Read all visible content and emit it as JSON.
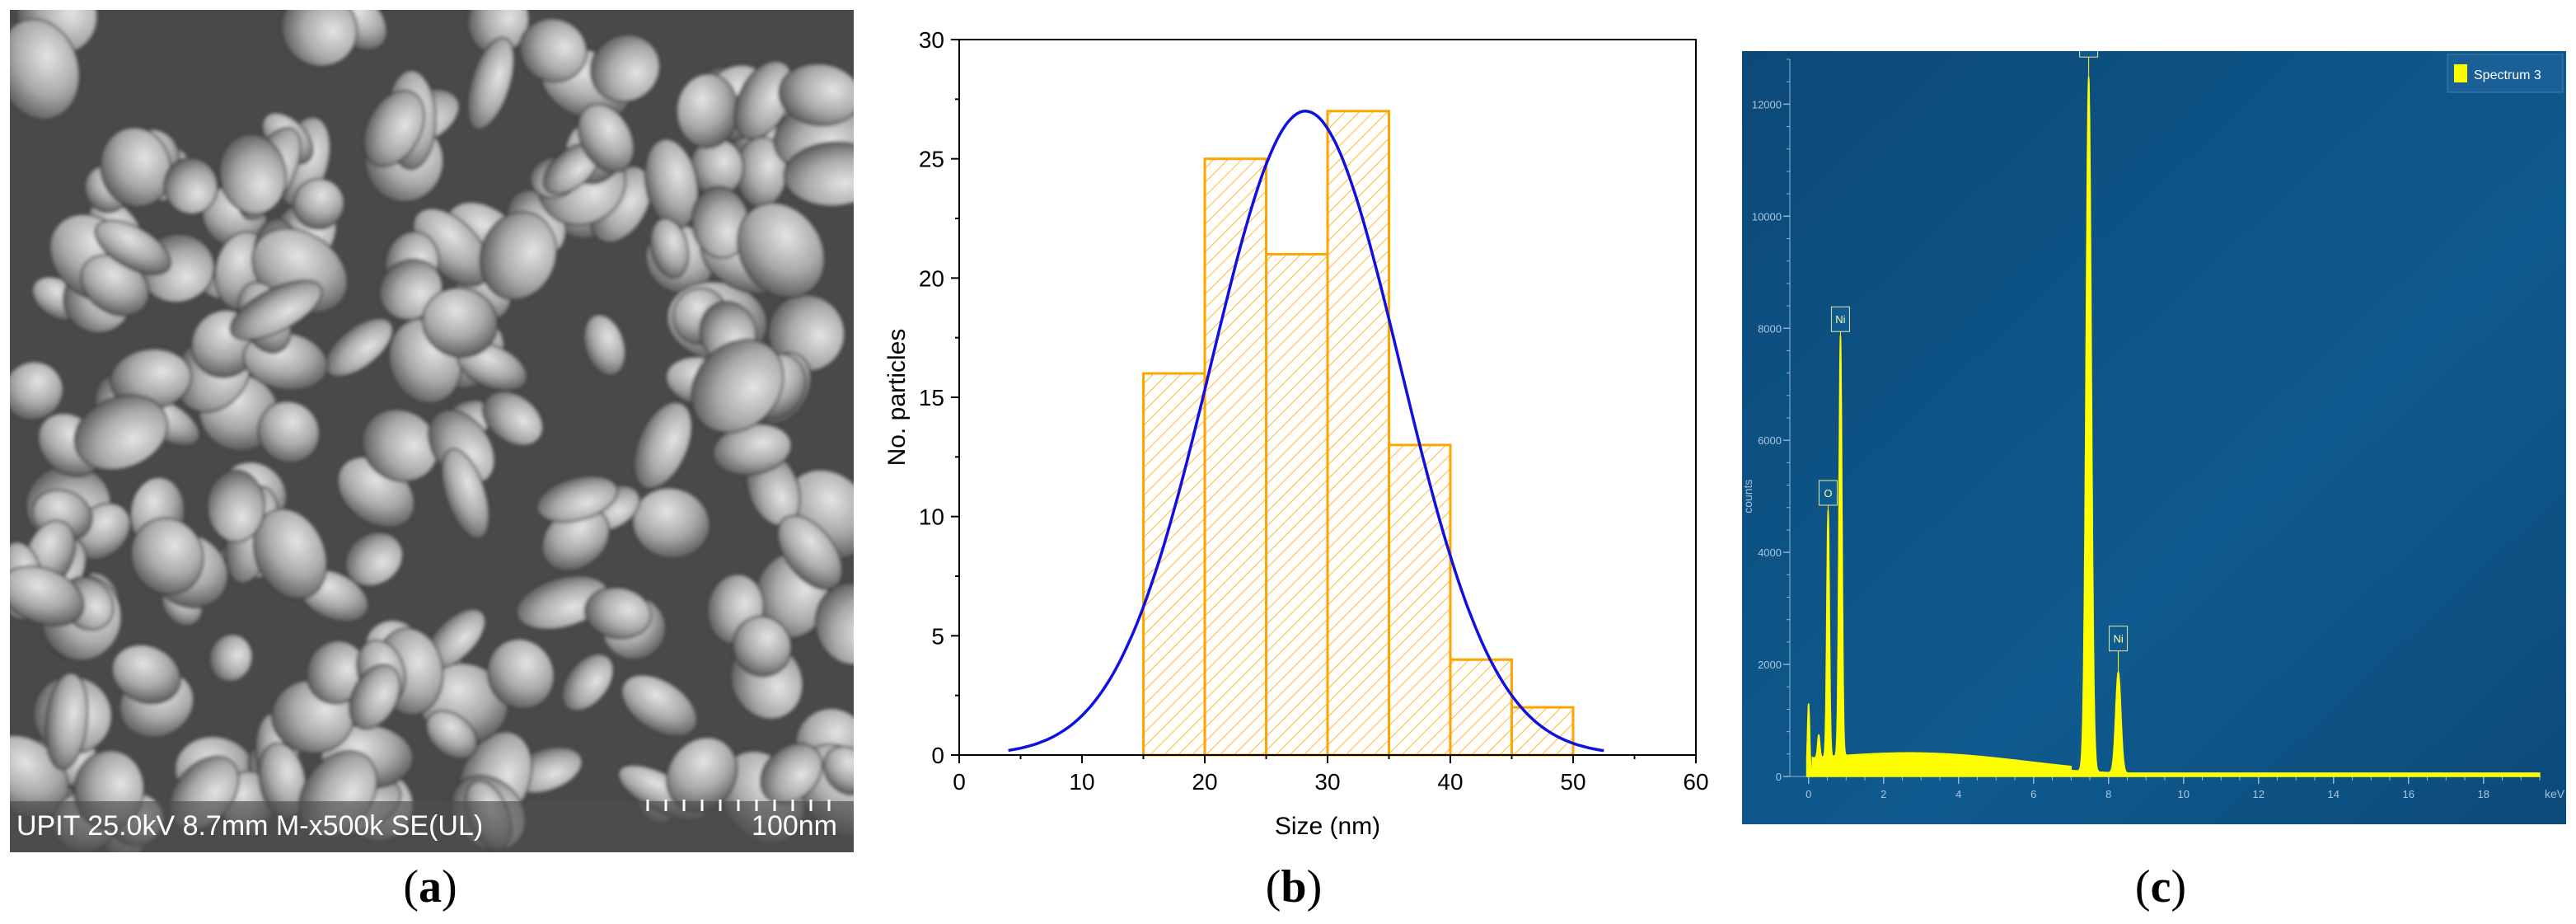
{
  "panels": {
    "a": {
      "label": "a",
      "sem_info": "UPIT 25.0kV 8.7mm M-x500k SE(UL)",
      "scale_bar_label": "100nm"
    },
    "b": {
      "label": "b"
    },
    "c": {
      "label": "c"
    }
  },
  "colors": {
    "histogram": "#FFA500",
    "fit_curve": "#1010E0",
    "eds_background": "#0E4F80",
    "eds_spectrum": "#FFFF00"
  },
  "chart_data": [
    {
      "type": "bar",
      "subtype": "histogram_with_gaussian_fit",
      "title": "",
      "xlabel": "Size (nm)",
      "ylabel": "No. particles",
      "xlim": [
        0,
        60
      ],
      "ylim": [
        0,
        30
      ],
      "xticks": [
        0,
        10,
        20,
        30,
        40,
        50,
        60
      ],
      "yticks": [
        0,
        5,
        10,
        15,
        20,
        25,
        30
      ],
      "bins": [
        {
          "from": 15,
          "to": 20,
          "count": 16
        },
        {
          "from": 20,
          "to": 25,
          "count": 25
        },
        {
          "from": 25,
          "to": 30,
          "count": 21
        },
        {
          "from": 30,
          "to": 35,
          "count": 27
        },
        {
          "from": 35,
          "to": 40,
          "count": 13
        },
        {
          "from": 40,
          "to": 45,
          "count": 4
        },
        {
          "from": 45,
          "to": 50,
          "count": 2
        }
      ],
      "fit": {
        "type": "gaussian",
        "center": 28.2,
        "sigma": 7.7,
        "amplitude": 27,
        "x_range": [
          4,
          52.5
        ]
      }
    },
    {
      "type": "line",
      "subtype": "eds_spectrum",
      "legend": [
        "Spectrum 3"
      ],
      "legend_position": "top-right",
      "xlabel": "keV",
      "ylabel": "counts",
      "xlim": [
        -0.5,
        19.5
      ],
      "ylim": [
        0,
        12800
      ],
      "xticks": [
        0,
        2,
        4,
        6,
        8,
        10,
        12,
        14,
        16,
        18
      ],
      "yticks": [
        0,
        2000,
        4000,
        6000,
        8000,
        10000,
        12000
      ],
      "peaks": [
        {
          "label": "O",
          "x": 0.52,
          "y": 4400
        },
        {
          "label": "Ni",
          "x": 0.85,
          "y": 7500
        },
        {
          "label": "Ni",
          "x": 7.47,
          "y": 12400
        },
        {
          "label": "Ni",
          "x": 8.26,
          "y": 1800
        }
      ]
    }
  ]
}
